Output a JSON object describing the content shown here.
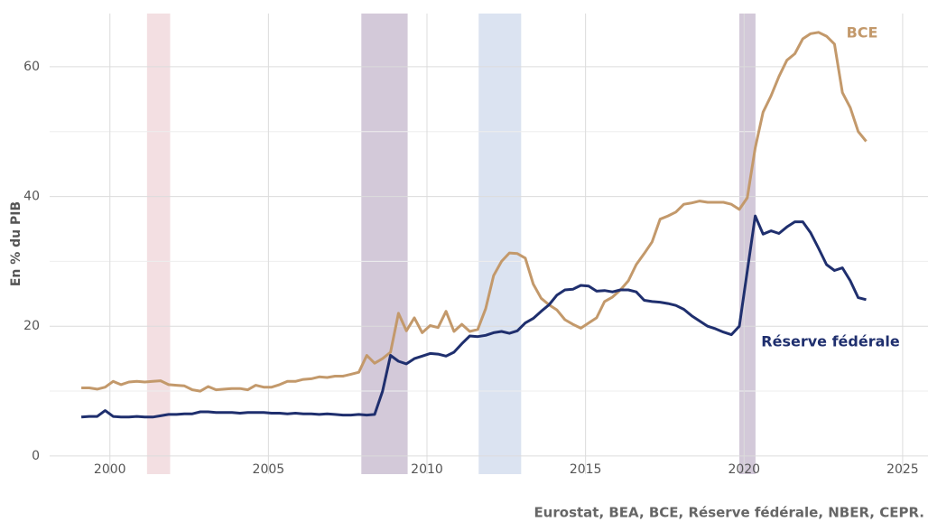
{
  "chart_data": {
    "type": "line",
    "ylabel": "En % du PIB",
    "source": "Eurostat, BEA, BCE, Réserve fédérale, NBER, CEPR.",
    "x": [
      1999.1,
      1999.35,
      1999.6,
      1999.85,
      2000.1,
      2000.35,
      2000.6,
      2000.85,
      2001.1,
      2001.35,
      2001.6,
      2001.85,
      2002.1,
      2002.35,
      2002.6,
      2002.85,
      2003.1,
      2003.35,
      2003.6,
      2003.85,
      2004.1,
      2004.35,
      2004.6,
      2004.85,
      2005.1,
      2005.35,
      2005.6,
      2005.85,
      2006.1,
      2006.35,
      2006.6,
      2006.85,
      2007.1,
      2007.35,
      2007.6,
      2007.85,
      2008.1,
      2008.35,
      2008.6,
      2008.85,
      2009.1,
      2009.35,
      2009.6,
      2009.85,
      2010.1,
      2010.35,
      2010.6,
      2010.85,
      2011.1,
      2011.35,
      2011.6,
      2011.85,
      2012.1,
      2012.35,
      2012.6,
      2012.85,
      2013.1,
      2013.35,
      2013.6,
      2013.85,
      2014.1,
      2014.35,
      2014.6,
      2014.85,
      2015.1,
      2015.35,
      2015.6,
      2015.85,
      2016.1,
      2016.35,
      2016.6,
      2016.85,
      2017.1,
      2017.35,
      2017.6,
      2017.85,
      2018.1,
      2018.35,
      2018.6,
      2018.85,
      2019.1,
      2019.35,
      2019.6,
      2019.85,
      2020.1,
      2020.35,
      2020.6,
      2020.85,
      2021.1,
      2021.35,
      2021.6,
      2021.85,
      2022.1,
      2022.35,
      2022.6,
      2022.85,
      2023.1,
      2023.35,
      2023.6,
      2023.85
    ],
    "series": [
      {
        "name": "BCE",
        "color": "#c3996b",
        "values": [
          10.5,
          10.5,
          10.3,
          10.6,
          11.5,
          11.0,
          11.4,
          11.5,
          11.4,
          11.5,
          11.6,
          11.0,
          10.9,
          10.8,
          10.2,
          10.0,
          10.7,
          10.2,
          10.3,
          10.4,
          10.4,
          10.2,
          10.9,
          10.6,
          10.6,
          11.0,
          11.5,
          11.5,
          11.8,
          11.9,
          12.2,
          12.1,
          12.3,
          12.3,
          12.6,
          12.9,
          15.5,
          14.3,
          15.0,
          16.0,
          22.0,
          19.3,
          21.3,
          19.0,
          20.1,
          19.8,
          22.3,
          19.2,
          20.3,
          19.2,
          19.5,
          22.7,
          27.8,
          30.0,
          31.3,
          31.2,
          30.5,
          26.5,
          24.3,
          23.3,
          22.5,
          21.0,
          20.3,
          19.7,
          20.5,
          21.3,
          23.8,
          24.5,
          25.6,
          27.0,
          29.5,
          31.2,
          33.0,
          36.5,
          37.0,
          37.6,
          38.8,
          39.0,
          39.3,
          39.1,
          39.1,
          39.1,
          38.8,
          38.0,
          39.8,
          47.5,
          53.0,
          55.5,
          58.5,
          61.0,
          62.0,
          64.3,
          65.1,
          65.3,
          64.7,
          63.5,
          56.0,
          53.7,
          50.0,
          48.5
        ]
      },
      {
        "name": "Réserve fédérale",
        "color": "#1f2f6e",
        "values": [
          6.0,
          6.1,
          6.1,
          7.0,
          6.1,
          6.0,
          6.0,
          6.1,
          6.0,
          6.0,
          6.2,
          6.4,
          6.4,
          6.5,
          6.5,
          6.8,
          6.8,
          6.7,
          6.7,
          6.7,
          6.6,
          6.7,
          6.7,
          6.7,
          6.6,
          6.6,
          6.5,
          6.6,
          6.5,
          6.5,
          6.4,
          6.5,
          6.4,
          6.3,
          6.3,
          6.4,
          6.3,
          6.4,
          10.0,
          15.5,
          14.6,
          14.2,
          15.0,
          15.4,
          15.8,
          15.7,
          15.4,
          16.0,
          17.3,
          18.5,
          18.4,
          18.6,
          19.0,
          19.2,
          18.9,
          19.3,
          20.5,
          21.2,
          22.3,
          23.3,
          24.8,
          25.6,
          25.7,
          26.3,
          26.2,
          25.4,
          25.5,
          25.3,
          25.6,
          25.6,
          25.3,
          24.0,
          23.8,
          23.7,
          23.5,
          23.2,
          22.6,
          21.6,
          20.8,
          20.0,
          19.6,
          19.1,
          18.7,
          20.0,
          28.5,
          37.0,
          34.2,
          34.7,
          34.3,
          35.3,
          36.1,
          36.1,
          34.4,
          32.0,
          29.5,
          28.6,
          29.0,
          27.0,
          24.4,
          24.1
        ]
      }
    ],
    "bands": [
      {
        "start": 2001.17,
        "end": 2001.9,
        "color": "#f3dfe2"
      },
      {
        "start": 2007.93,
        "end": 2009.39,
        "color": "#d3c9d9"
      },
      {
        "start": 2011.63,
        "end": 2012.97,
        "color": "#dbe3f1"
      },
      {
        "start": 2019.85,
        "end": 2020.36,
        "color": "#d3c9d9"
      }
    ],
    "xlim": [
      1998.1,
      2025.8
    ],
    "xticks": [
      2000,
      2005,
      2010,
      2015,
      2020,
      2025
    ],
    "ylim": [
      -2.8,
      68.2
    ],
    "yticks": [
      0,
      20,
      40,
      60
    ],
    "yminor": [
      10,
      30,
      50
    ],
    "grid": true
  }
}
